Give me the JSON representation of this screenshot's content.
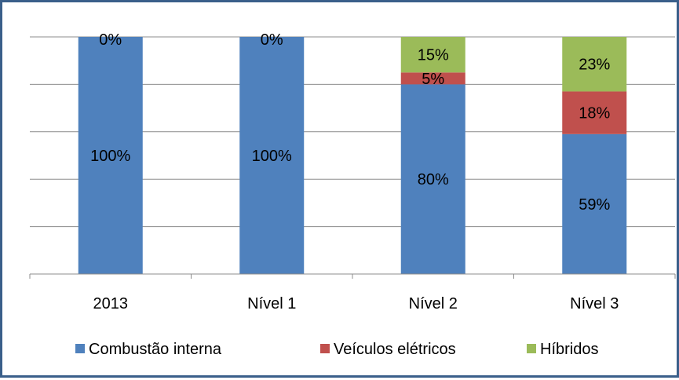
{
  "chart_data": {
    "type": "bar",
    "stacked": true,
    "categories": [
      "2013",
      "Nível 1",
      "Nível 2",
      "Nível 3"
    ],
    "series": [
      {
        "name": "Combustão interna",
        "color": "#4f81bd",
        "values": [
          100,
          100,
          80,
          59
        ],
        "labels": [
          "100%",
          "100%",
          "80%",
          "59%"
        ]
      },
      {
        "name": "Veículos elétricos",
        "color": "#c0504d",
        "values": [
          0,
          0,
          5,
          18
        ],
        "labels": [
          "",
          "",
          "5%",
          "18%"
        ]
      },
      {
        "name": "Híbridos",
        "color": "#9bbb59",
        "values": [
          0,
          0,
          15,
          23
        ],
        "labels": [
          "0%",
          "0%",
          "15%",
          "23%"
        ]
      }
    ],
    "ylim": [
      0,
      100
    ],
    "grid": true,
    "legend": "bottom",
    "title": "",
    "xlabel": "",
    "ylabel": ""
  }
}
